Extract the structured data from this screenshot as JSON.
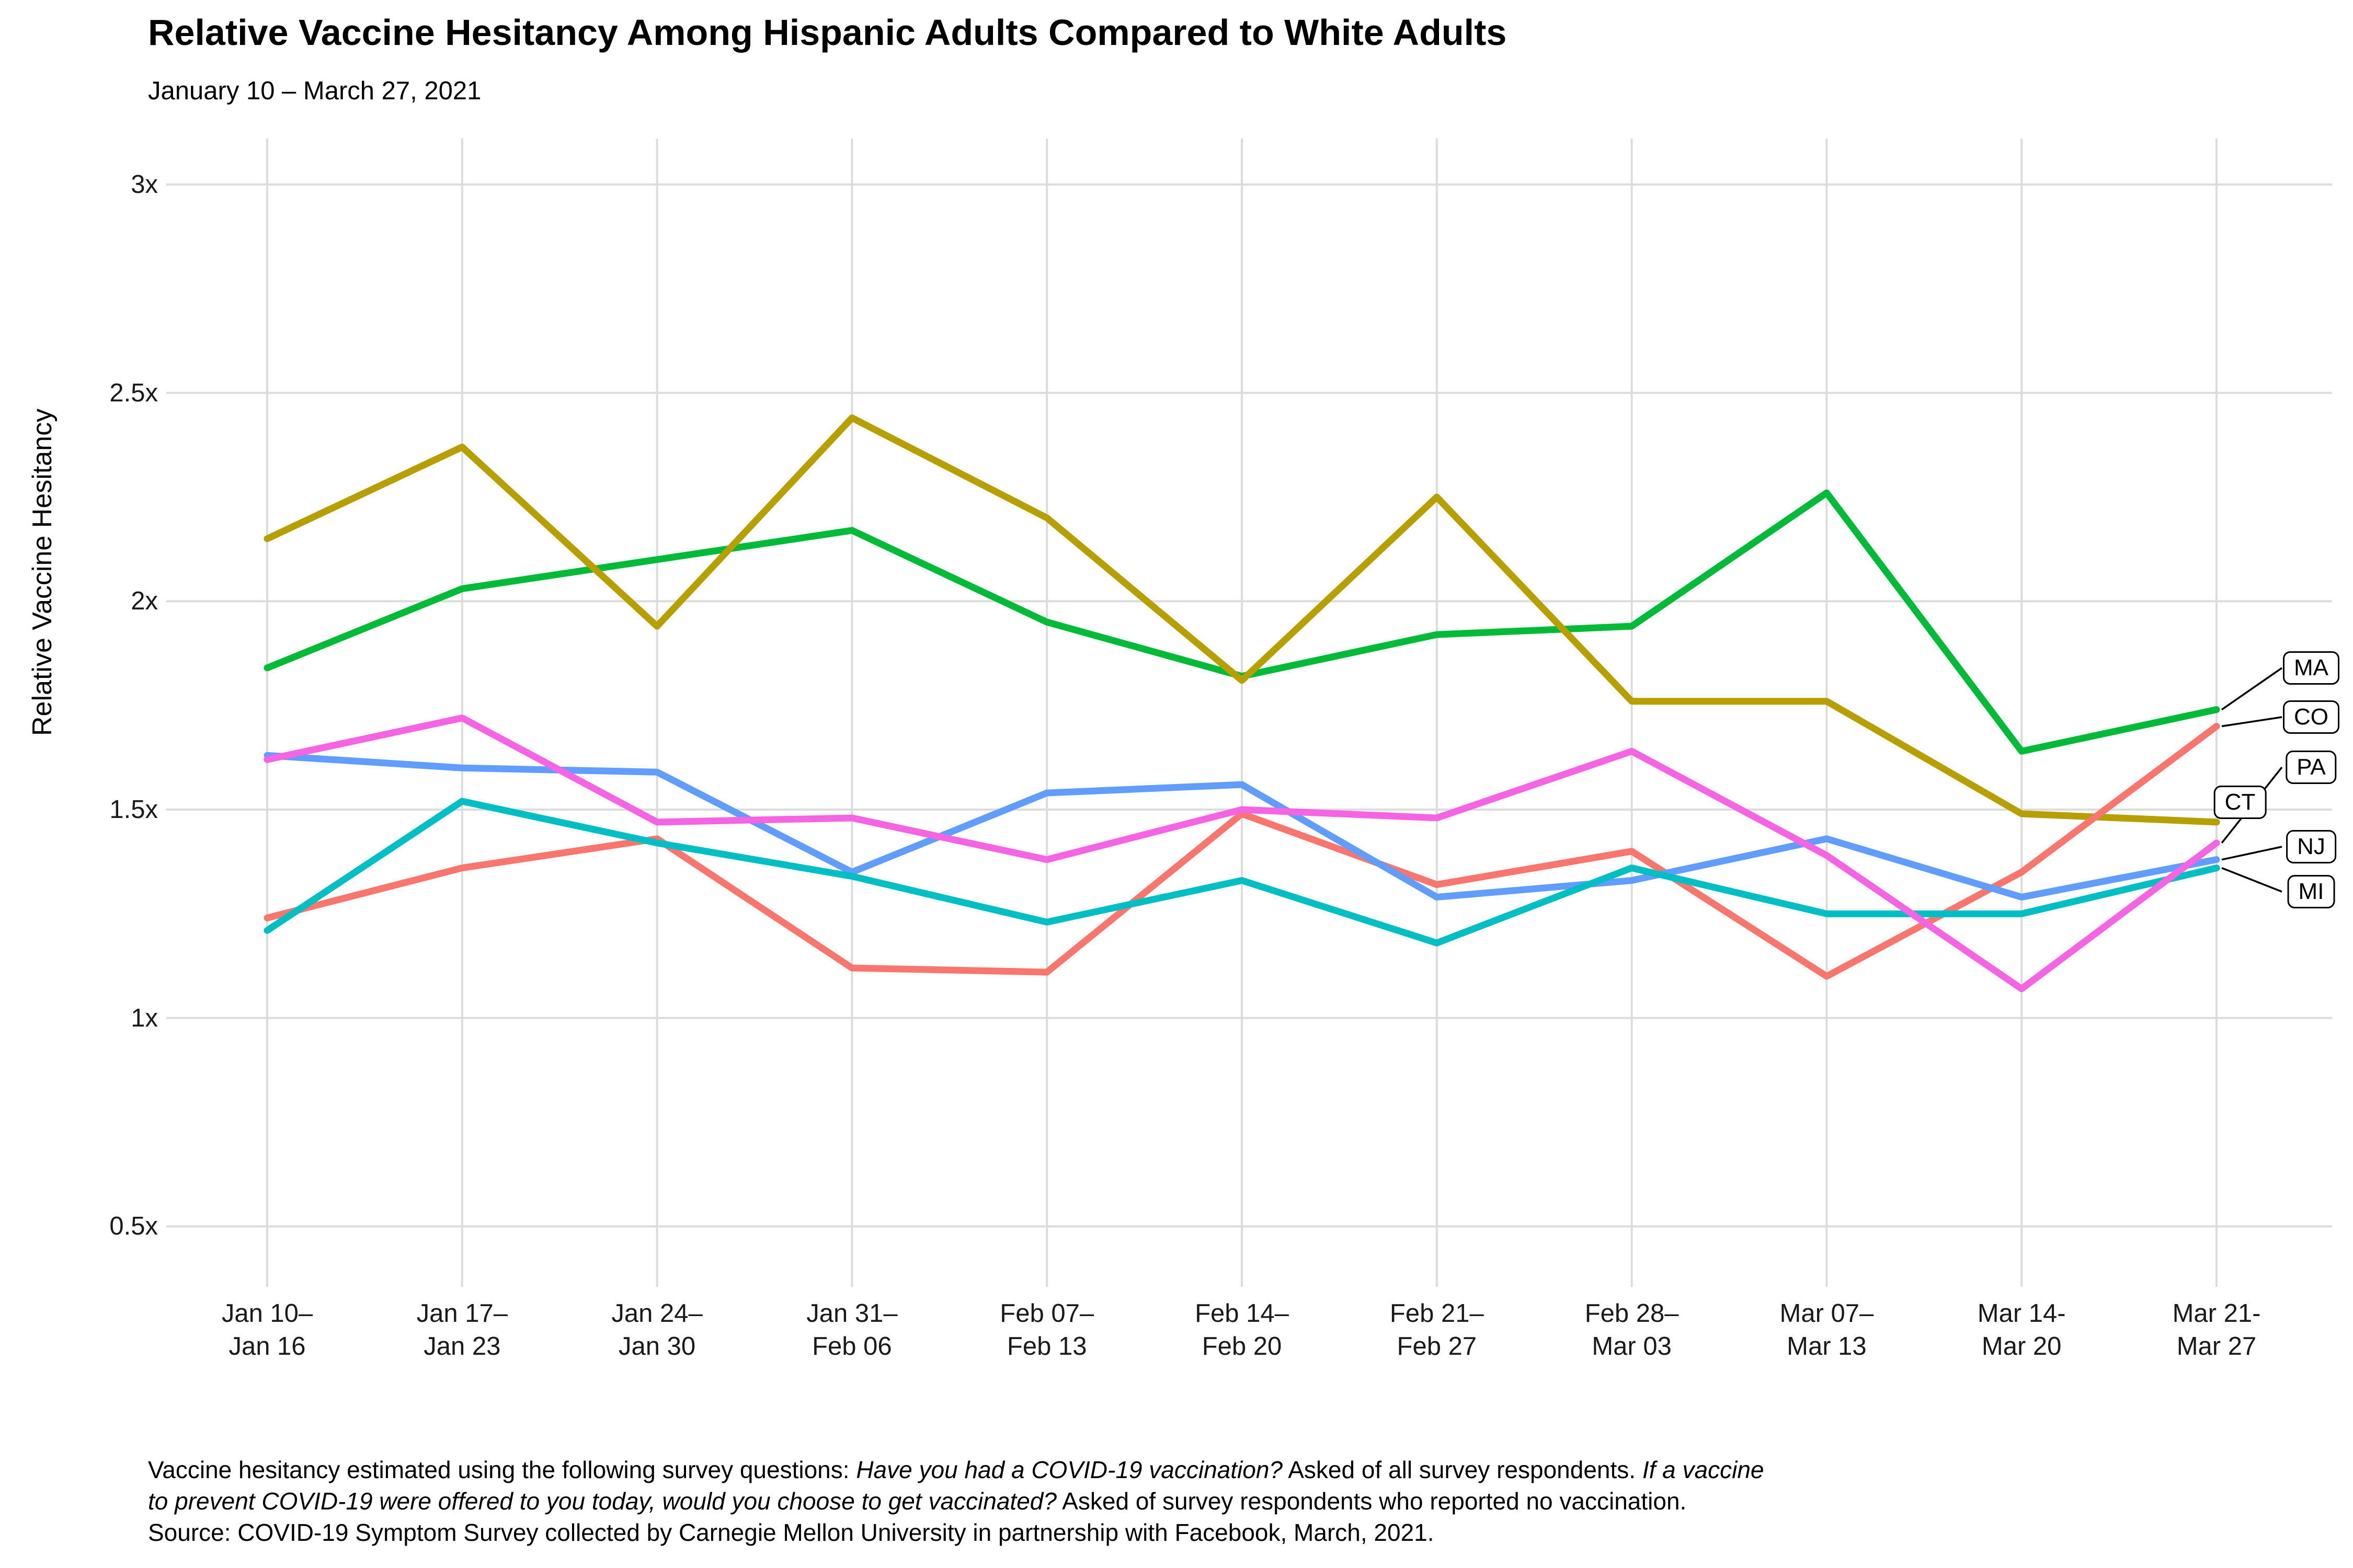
{
  "header": {
    "title": "Relative Vaccine Hesitancy Among Hispanic Adults Compared to White Adults",
    "subtitle": "January 10 – March 27, 2021"
  },
  "axes": {
    "y_title": "Relative Vaccine Hesitancy",
    "y_ticks": [
      {
        "label": "3x",
        "value": 3
      },
      {
        "label": "2.5x",
        "value": 2.5
      },
      {
        "label": "2x",
        "value": 2
      },
      {
        "label": "1.5x",
        "value": 1.5
      },
      {
        "label": "1x",
        "value": 1
      },
      {
        "label": "0.5x",
        "value": 0.5
      }
    ]
  },
  "chart_data": {
    "type": "line",
    "title": "Relative Vaccine Hesitancy Among Hispanic Adults Compared to White Adults",
    "subtitle": "January 10 – March 27, 2021",
    "xlabel": "",
    "ylabel": "Relative Vaccine Hesitancy",
    "ylim": [
      0.5,
      3
    ],
    "grid": "major-only",
    "legend_position": "direct-labels-right",
    "categories": [
      {
        "line1": "Jan 10–",
        "line2": "Jan 16"
      },
      {
        "line1": "Jan 17–",
        "line2": "Jan 23"
      },
      {
        "line1": "Jan 24–",
        "line2": "Jan 30"
      },
      {
        "line1": "Jan 31–",
        "line2": "Feb 06"
      },
      {
        "line1": "Feb 07–",
        "line2": "Feb 13"
      },
      {
        "line1": "Feb 14–",
        "line2": "Feb 20"
      },
      {
        "line1": "Feb 21–",
        "line2": "Feb 27"
      },
      {
        "line1": "Feb 28–",
        "line2": "Mar 03"
      },
      {
        "line1": "Mar 07–",
        "line2": "Mar 13"
      },
      {
        "line1": "Mar 14-",
        "line2": "Mar 20"
      },
      {
        "line1": "Mar 21-",
        "line2": "Mar 27"
      }
    ],
    "series": [
      {
        "name": "MA",
        "color": "#00BA38",
        "values": [
          1.84,
          2.03,
          2.1,
          2.17,
          1.95,
          1.82,
          1.92,
          1.94,
          2.26,
          1.64,
          1.74
        ]
      },
      {
        "name": "CT",
        "color": "#B79F00",
        "values": [
          2.15,
          2.37,
          1.94,
          2.44,
          2.2,
          1.81,
          2.25,
          1.76,
          1.76,
          1.49,
          1.47
        ]
      },
      {
        "name": "CO",
        "color": "#F8766D",
        "values": [
          1.24,
          1.36,
          1.43,
          1.12,
          1.11,
          1.49,
          1.32,
          1.4,
          1.1,
          1.35,
          1.7
        ]
      },
      {
        "name": "NJ",
        "color": "#619CFF",
        "values": [
          1.63,
          1.6,
          1.59,
          1.35,
          1.54,
          1.56,
          1.29,
          1.33,
          1.43,
          1.29,
          1.38
        ]
      },
      {
        "name": "MI",
        "color": "#00BFC4",
        "values": [
          1.21,
          1.52,
          1.42,
          1.34,
          1.23,
          1.33,
          1.18,
          1.36,
          1.25,
          1.25,
          1.36
        ]
      },
      {
        "name": "PA",
        "color": "#F564E3",
        "values": [
          1.62,
          1.72,
          1.47,
          1.48,
          1.38,
          1.5,
          1.48,
          1.64,
          1.39,
          1.07,
          1.42
        ]
      }
    ]
  },
  "footer": {
    "lines": [
      [
        {
          "text": "Vaccine hesitancy estimated using the following survey questions: ",
          "italic": false
        },
        {
          "text": "Have you had a COVID-19 vaccination?",
          "italic": true
        },
        {
          "text": " Asked of all survey respondents. ",
          "italic": false
        },
        {
          "text": "If a vaccine",
          "italic": true
        }
      ],
      [
        {
          "text": "to prevent COVID-19 were offered to you today, would you choose to get vaccinated?",
          "italic": true
        },
        {
          "text": " Asked of survey respondents who reported no vaccination.",
          "italic": false
        }
      ],
      [
        {
          "text": "Source: COVID-19 Symptom Survey collected by Carnegie Mellon University in partnership with Facebook, March, 2021.",
          "italic": false
        }
      ]
    ]
  }
}
